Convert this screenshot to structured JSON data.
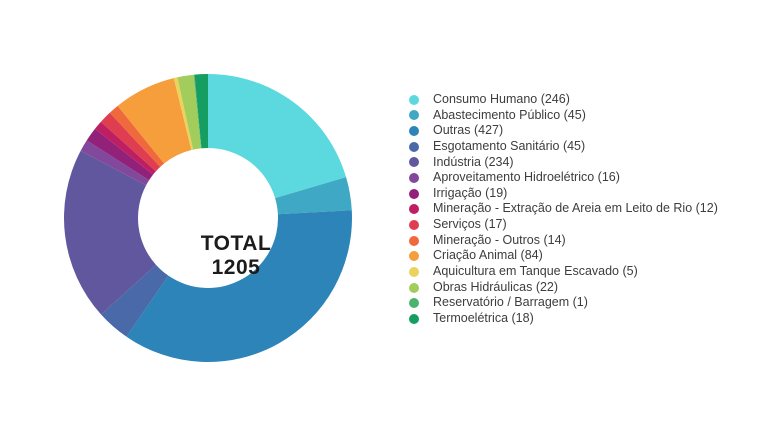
{
  "chart_data": {
    "type": "pie",
    "variant": "donut",
    "legend_position": "right",
    "legend_format": "{label} ({value})",
    "total": 1205,
    "center_label": {
      "line1": "TOTAL",
      "line2": "1205"
    },
    "items": [
      {
        "label": "Consumo Humano",
        "value": 246,
        "color": "#5CD9DE"
      },
      {
        "label": "Abastecimento Público",
        "value": 45,
        "color": "#3FA8C4"
      },
      {
        "label": "Outras",
        "value": 427,
        "color": "#2C84B8"
      },
      {
        "label": "Esgotamento Sanitário",
        "value": 45,
        "color": "#4A69A8"
      },
      {
        "label": "Indústria",
        "value": 234,
        "color": "#60579E"
      },
      {
        "label": "Aproveitamento Hidroelétrico",
        "value": 16,
        "color": "#82489B"
      },
      {
        "label": "Irrigação",
        "value": 19,
        "color": "#92217A"
      },
      {
        "label": "Mineração - Extração de Areia em Leito de Rio",
        "value": 12,
        "color": "#BE1F63"
      },
      {
        "label": "Serviços",
        "value": 17,
        "color": "#DE3E4F"
      },
      {
        "label": "Mineração - Outros",
        "value": 14,
        "color": "#F0693C"
      },
      {
        "label": "Criação Animal",
        "value": 84,
        "color": "#F69D3C"
      },
      {
        "label": "Aquicultura em Tanque Escavado",
        "value": 5,
        "color": "#E9D35C"
      },
      {
        "label": "Obras Hidráulicas",
        "value": 22,
        "color": "#A2CC5B"
      },
      {
        "label": "Reservatório / Barragem",
        "value": 1,
        "color": "#4CB36C"
      },
      {
        "label": "Termoelétrica",
        "value": 18,
        "color": "#169E62"
      }
    ]
  }
}
